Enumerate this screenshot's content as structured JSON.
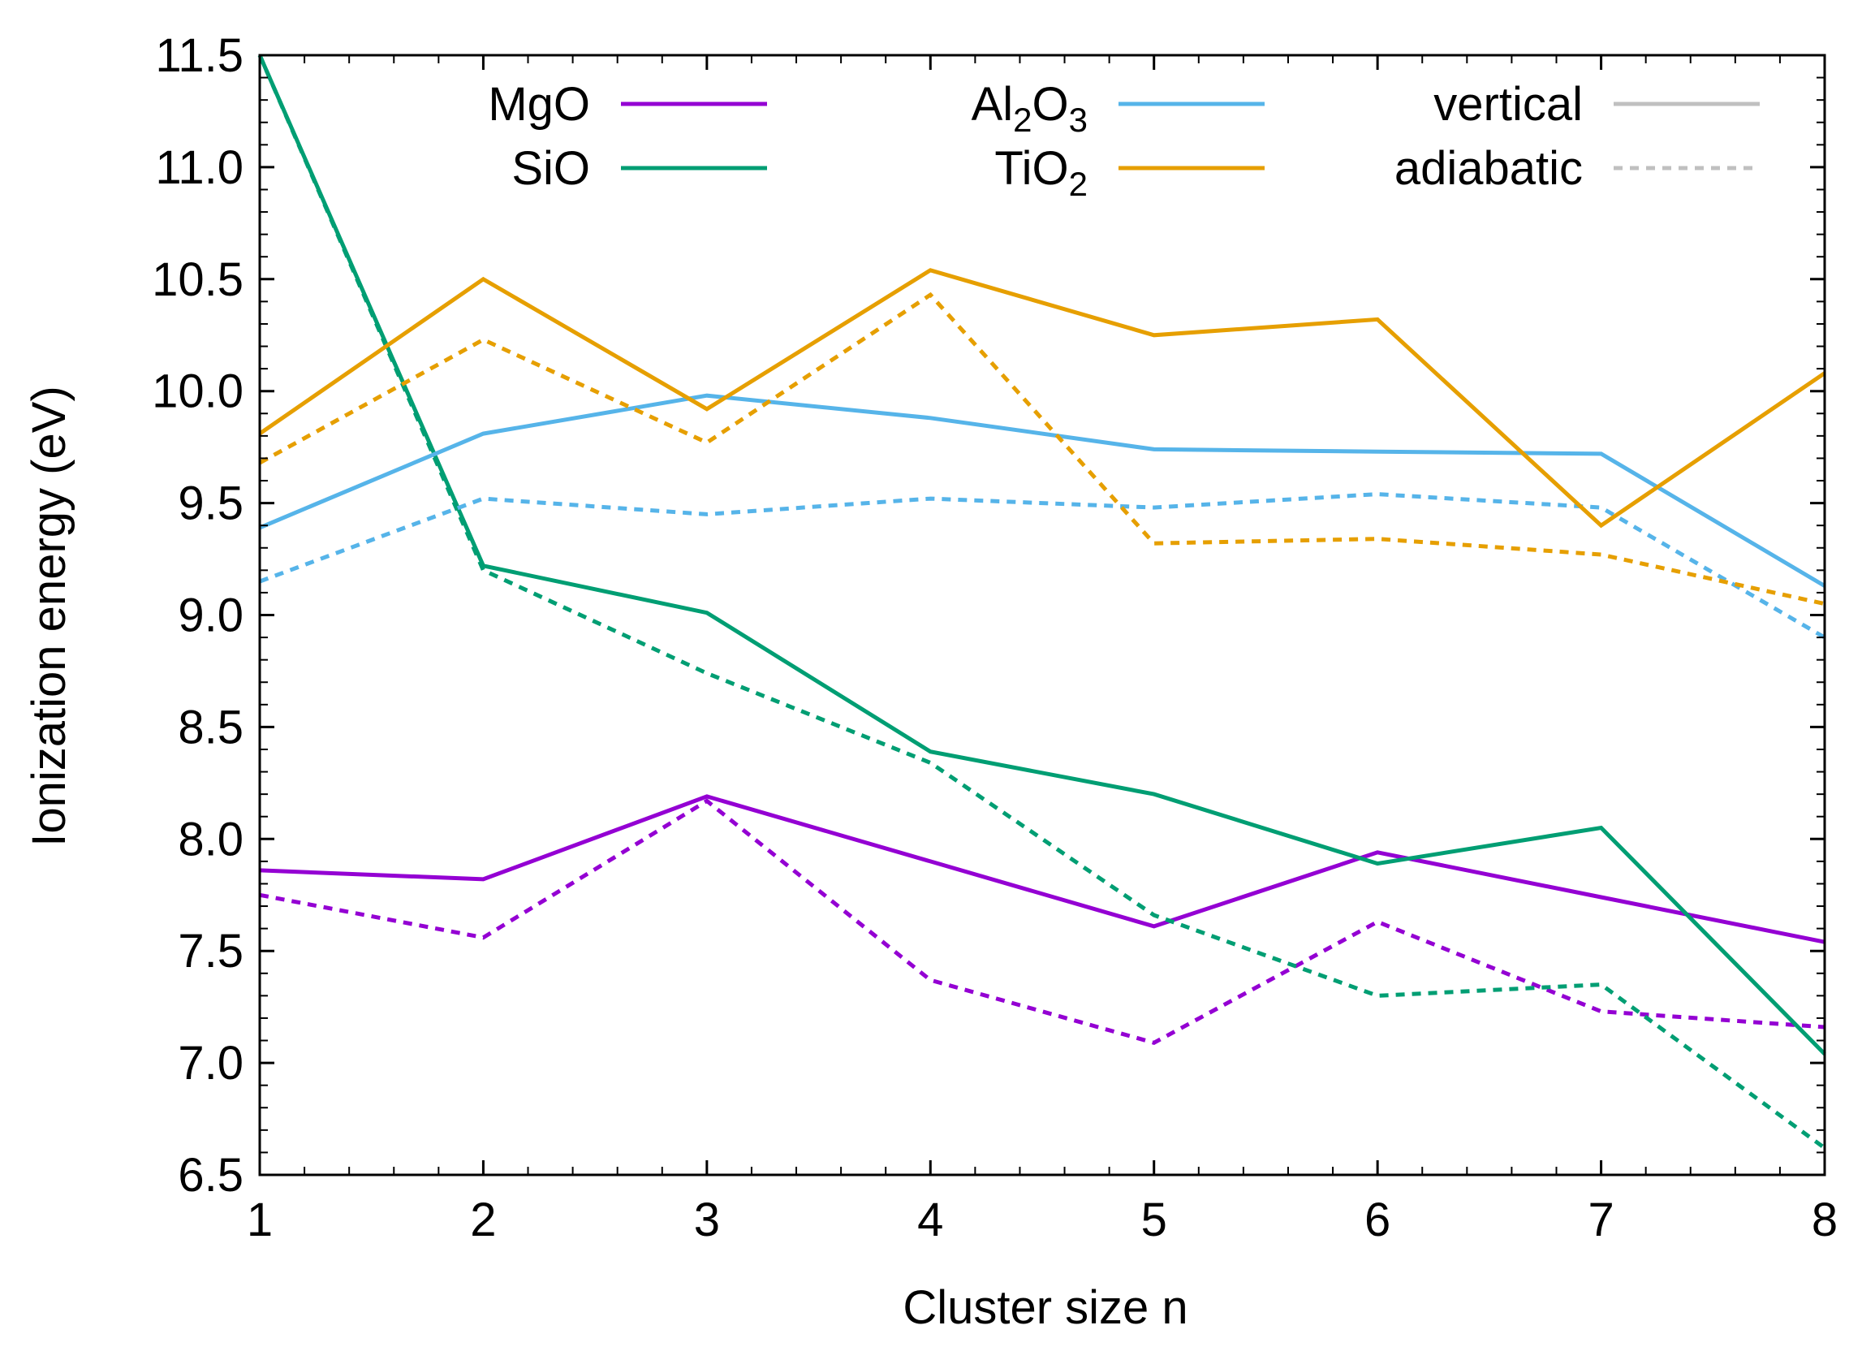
{
  "chart_data": {
    "type": "line",
    "title": "",
    "xlabel": "Cluster size n",
    "ylabel": "Ionization energy (eV)",
    "xlim": [
      1,
      8
    ],
    "ylim": [
      6.5,
      11.5
    ],
    "x_ticks": [
      1,
      2,
      3,
      4,
      5,
      6,
      7,
      8
    ],
    "x_tick_labels": [
      "1",
      "2",
      "3",
      "4",
      "5",
      "6",
      "7",
      "8"
    ],
    "y_ticks": [
      6.5,
      7.0,
      7.5,
      8.0,
      8.5,
      9.0,
      9.5,
      10.0,
      10.5,
      11.0,
      11.5
    ],
    "y_tick_labels": [
      "6.5",
      "7.0",
      "7.5",
      "8.0",
      "8.5",
      "9.0",
      "9.5",
      "10.0",
      "10.5",
      "11.0",
      "11.5"
    ],
    "grid": false,
    "legend_position": "top",
    "x": [
      1,
      2,
      3,
      4,
      5,
      6,
      7,
      8
    ],
    "series": [
      {
        "name": "MgO vertical",
        "compound": "MgO",
        "kind": "vertical",
        "color": "#9400d3",
        "values": [
          7.86,
          7.82,
          8.19,
          7.9,
          7.61,
          7.94,
          7.74,
          7.54
        ]
      },
      {
        "name": "MgO adiabatic",
        "compound": "MgO",
        "kind": "adiabatic",
        "color": "#9400d3",
        "values": [
          7.75,
          7.56,
          8.17,
          7.37,
          7.09,
          7.63,
          7.23,
          7.16
        ]
      },
      {
        "name": "SiO vertical",
        "compound": "SiO",
        "kind": "vertical",
        "color": "#009e73",
        "values": [
          11.5,
          9.22,
          9.01,
          8.39,
          8.2,
          7.89,
          8.05,
          7.04
        ]
      },
      {
        "name": "SiO adiabatic",
        "compound": "SiO",
        "kind": "adiabatic",
        "color": "#009e73",
        "values": [
          11.5,
          9.2,
          8.74,
          8.34,
          7.66,
          7.3,
          7.35,
          6.62
        ]
      },
      {
        "name": "Al2O3 vertical",
        "compound": "Al2O3",
        "kind": "vertical",
        "color": "#56b4e9",
        "values": [
          9.39,
          9.81,
          9.98,
          9.88,
          9.74,
          9.73,
          9.72,
          9.13
        ]
      },
      {
        "name": "Al2O3 adiabatic",
        "compound": "Al2O3",
        "kind": "adiabatic",
        "color": "#56b4e9",
        "values": [
          9.15,
          9.52,
          9.45,
          9.52,
          9.48,
          9.54,
          9.48,
          8.9
        ]
      },
      {
        "name": "TiO2 vertical",
        "compound": "TiO2",
        "kind": "vertical",
        "color": "#e69f00",
        "values": [
          9.81,
          10.5,
          9.92,
          10.54,
          10.25,
          10.32,
          9.4,
          10.08
        ]
      },
      {
        "name": "TiO2 adiabatic",
        "compound": "TiO2",
        "kind": "adiabatic",
        "color": "#e69f00",
        "values": [
          9.68,
          10.23,
          9.77,
          10.43,
          9.32,
          9.34,
          9.27,
          9.05
        ]
      }
    ],
    "legend": [
      {
        "label": "MgO",
        "label_sub": null,
        "color": "#9400d3",
        "style": "solid"
      },
      {
        "label": "SiO",
        "label_sub": null,
        "color": "#009e73",
        "style": "solid"
      },
      {
        "label": "Al",
        "label_sub": "2",
        "label_rest": "O",
        "label_sub2": "3",
        "color": "#56b4e9",
        "style": "solid"
      },
      {
        "label": "TiO",
        "label_sub": "2",
        "color": "#e69f00",
        "style": "solid"
      },
      {
        "label": "vertical",
        "label_sub": null,
        "color": "#c0c0c0",
        "style": "solid"
      },
      {
        "label": "adiabatic",
        "label_sub": null,
        "color": "#c0c0c0",
        "style": "dashed"
      }
    ]
  }
}
